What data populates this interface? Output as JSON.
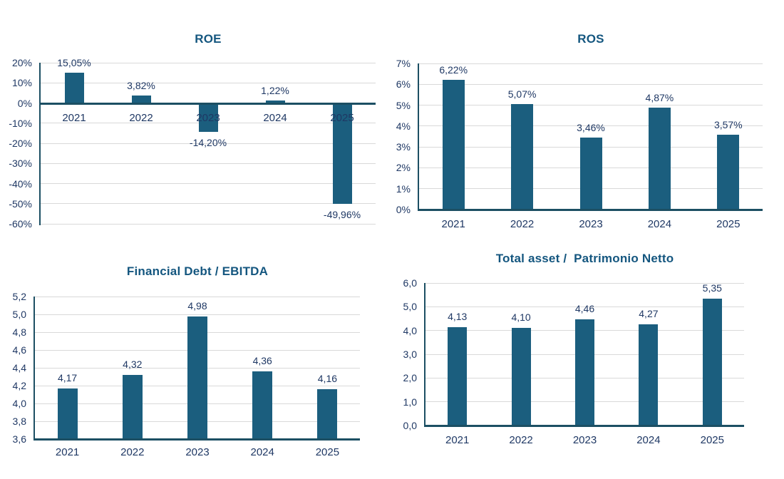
{
  "colors": {
    "bar": "#1B5E7E",
    "axis": "#1C4F63",
    "grid": "#D9D9D9",
    "label_text": "#1F3864",
    "title_text": "#14567F",
    "background": "#FFFFFF"
  },
  "chart_data": [
    {
      "type": "bar",
      "title": "ROE",
      "xlabel": "",
      "ylabel": "",
      "categories": [
        "2021",
        "2022",
        "2023",
        "2024",
        "2025"
      ],
      "values": [
        15.05,
        3.82,
        -14.2,
        1.22,
        -49.96
      ],
      "data_labels": [
        "15,05%",
        "3,82%",
        "-14,20%",
        "1,22%",
        "-49,96%"
      ],
      "ylim": [
        -60,
        20
      ],
      "ytick_step": 10,
      "ytick_labels": [
        "20%",
        "10%",
        "0%",
        "-10%",
        "-20%",
        "-30%",
        "-40%",
        "-50%",
        "-60%"
      ],
      "x_labels_position": "zero_line",
      "grid": true,
      "legend": "none"
    },
    {
      "type": "bar",
      "title": "ROS",
      "xlabel": "",
      "ylabel": "",
      "categories": [
        "2021",
        "2022",
        "2023",
        "2024",
        "2025"
      ],
      "values": [
        6.22,
        5.07,
        3.46,
        4.87,
        3.57
      ],
      "data_labels": [
        "6,22%",
        "5,07%",
        "3,46%",
        "4,87%",
        "3,57%"
      ],
      "ylim": [
        0,
        7
      ],
      "ytick_step": 1,
      "ytick_labels": [
        "7%",
        "6%",
        "5%",
        "4%",
        "3%",
        "2%",
        "1%",
        "0%"
      ],
      "x_labels_position": "below_axis",
      "grid": true,
      "legend": "none"
    },
    {
      "type": "bar",
      "title": "Financial Debt / EBITDA",
      "xlabel": "",
      "ylabel": "",
      "categories": [
        "2021",
        "2022",
        "2023",
        "2024",
        "2025"
      ],
      "values": [
        4.17,
        4.32,
        4.98,
        4.36,
        4.16
      ],
      "data_labels": [
        "4,17",
        "4,32",
        "4,98",
        "4,36",
        "4,16"
      ],
      "ylim": [
        3.6,
        5.2
      ],
      "ytick_step": 0.2,
      "ytick_labels": [
        "5,2",
        "5,0",
        "4,8",
        "4,6",
        "4,4",
        "4,2",
        "4,0",
        "3,8",
        "3,6"
      ],
      "x_labels_position": "below_axis",
      "grid": true,
      "legend": "none"
    },
    {
      "type": "bar",
      "title": "Total asset /  Patrimonio Netto",
      "xlabel": "",
      "ylabel": "",
      "categories": [
        "2021",
        "2022",
        "2023",
        "2024",
        "2025"
      ],
      "values": [
        4.13,
        4.1,
        4.46,
        4.27,
        5.35
      ],
      "data_labels": [
        "4,13",
        "4,10",
        "4,46",
        "4,27",
        "5,35"
      ],
      "ylim": [
        0,
        6
      ],
      "ytick_step": 1,
      "ytick_labels": [
        "6,0",
        "5,0",
        "4,0",
        "3,0",
        "2,0",
        "1,0",
        "0,0"
      ],
      "x_labels_position": "below_axis",
      "grid": true,
      "legend": "none"
    }
  ]
}
